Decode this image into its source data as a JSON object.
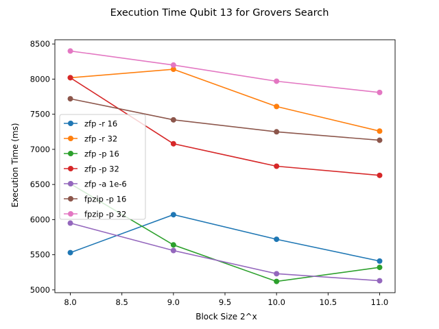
{
  "chart_data": {
    "type": "line",
    "title": "Execution Time Qubit 13 for Grovers Search",
    "xlabel": "Block Size 2^x",
    "ylabel": "Execution Time (ms)",
    "x": [
      8,
      9,
      10,
      11
    ],
    "xlim": [
      7.85,
      11.15
    ],
    "ylim": [
      4960,
      8560
    ],
    "xticks": [
      8.0,
      8.5,
      9.0,
      9.5,
      10.0,
      10.5,
      11.0
    ],
    "xtick_labels": [
      "8.0",
      "8.5",
      "9.0",
      "9.5",
      "10.0",
      "10.5",
      "11.0"
    ],
    "yticks": [
      5000,
      5500,
      6000,
      6500,
      7000,
      7500,
      8000,
      8500
    ],
    "ytick_labels": [
      "5000",
      "5500",
      "6000",
      "6500",
      "7000",
      "7500",
      "8000",
      "8500"
    ],
    "grid": false,
    "legend_position": "center-left",
    "series": [
      {
        "name": "zfp -r 16",
        "color": "#1f77b4",
        "values": [
          5530,
          6070,
          5720,
          5410
        ]
      },
      {
        "name": "zfp -r 32",
        "color": "#ff7f0e",
        "values": [
          8020,
          8140,
          7610,
          7260
        ]
      },
      {
        "name": "zfp -p 16",
        "color": "#2ca02c",
        "values": [
          6510,
          5640,
          5120,
          5320
        ]
      },
      {
        "name": "zfp -p 32",
        "color": "#d62728",
        "values": [
          8020,
          7080,
          6760,
          6630
        ]
      },
      {
        "name": "zfp -a 1e-6",
        "color": "#9467bd",
        "values": [
          5950,
          5560,
          5230,
          5130
        ]
      },
      {
        "name": "fpzip -p 16",
        "color": "#8c564b",
        "values": [
          7720,
          7420,
          7250,
          7130
        ]
      },
      {
        "name": "fpzip -p 32",
        "color": "#e377c2",
        "values": [
          8400,
          8200,
          7970,
          7810
        ]
      }
    ]
  }
}
